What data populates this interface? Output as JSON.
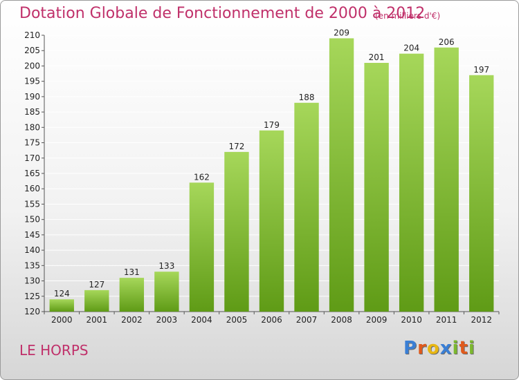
{
  "header": {
    "title": "Dotation Globale de Fonctionnement de 2000 à 2012",
    "subtitle": "(en milliers d'€)"
  },
  "commune": "LE HORPS",
  "logo": {
    "text": "Proxiti",
    "letters": [
      "P",
      "r",
      "o",
      "x",
      "i",
      "t",
      "i"
    ],
    "colors": [
      "#3a7fd5",
      "#e05a1c",
      "#e8b713",
      "#3a7fd5",
      "#7cb82f",
      "#e05a1c",
      "#7cb82f"
    ]
  },
  "colors": {
    "title": "#c0306a",
    "bar_top": "#a6d75a",
    "bar_bottom": "#5f9b16",
    "grid": "#ffffff"
  },
  "chart_data": {
    "type": "bar",
    "categories": [
      "2000",
      "2001",
      "2002",
      "2003",
      "2004",
      "2005",
      "2006",
      "2007",
      "2008",
      "2009",
      "2010",
      "2011",
      "2012"
    ],
    "values": [
      124,
      127,
      131,
      133,
      162,
      172,
      179,
      188,
      209,
      201,
      204,
      206,
      197
    ],
    "title": "Dotation Globale de Fonctionnement de 2000 à 2012",
    "subtitle": "(en milliers d'€)",
    "xlabel": "",
    "ylabel": "",
    "ylim": [
      120,
      210
    ],
    "yticks": [
      120,
      125,
      130,
      135,
      140,
      145,
      150,
      155,
      160,
      165,
      170,
      175,
      180,
      185,
      190,
      195,
      200,
      205,
      210
    ],
    "grid": true,
    "legend": "none"
  }
}
